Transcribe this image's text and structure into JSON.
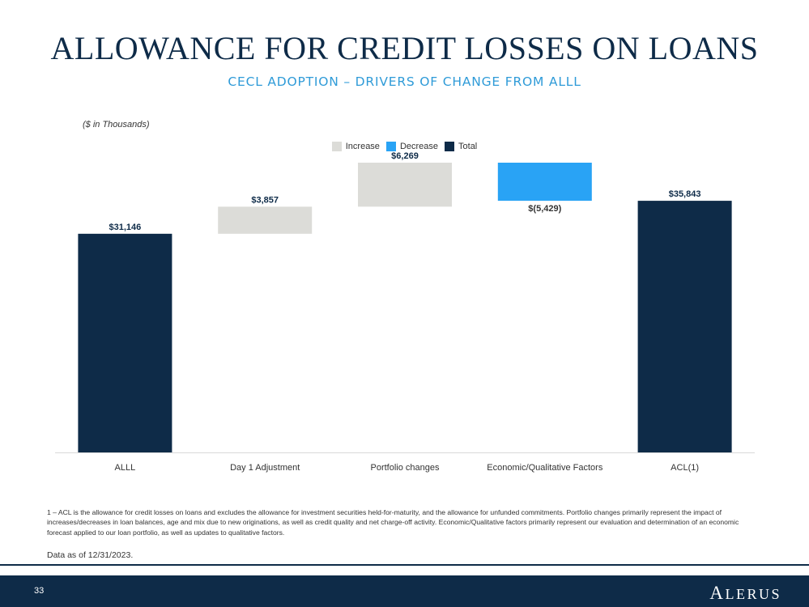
{
  "header": {
    "title": "ALLOWANCE FOR CREDIT LOSSES ON LOANS",
    "subtitle": "CECL ADOPTION – DRIVERS OF CHANGE FROM ALLL"
  },
  "chart_units": "($ in Thousands)",
  "legend": [
    {
      "label": "Increase",
      "color": "#dcdcd8"
    },
    {
      "label": "Decrease",
      "color": "#29a3f5"
    },
    {
      "label": "Total",
      "color": "#0e2b48"
    }
  ],
  "chart_data": {
    "type": "bar",
    "subtype": "waterfall",
    "categories": [
      "ALLL",
      "Day 1 Adjustment",
      "Portfolio changes",
      "Economic/Qualitative Factors",
      "ACL(1)"
    ],
    "values": [
      31146,
      3857,
      6269,
      -5429,
      35843
    ],
    "kinds": [
      "total",
      "increase",
      "increase",
      "decrease",
      "total"
    ],
    "data_labels": [
      "$31,146",
      "$3,857",
      "$6,269",
      "$(5,429)",
      "$35,843"
    ],
    "ylim": [
      0,
      41272
    ],
    "grid": false,
    "legend_position": "top"
  },
  "footnote": "1 – ACL is the allowance for credit losses on loans and excludes the allowance for investment securities held-for-maturity, and the allowance for unfunded commitments. Portfolio changes primarily represent the impact of increases/decreases in loan balances, age and mix due to new originations, as well as credit quality and net charge-off activity. Economic/Qualitative factors primarily represent our evaluation and determination of an economic forecast applied to our loan portfolio, as well as updates to qualitative factors.",
  "data_as_of": "Data as of 12/31/2023.",
  "footer": {
    "page_number": "33",
    "logo_first": "A",
    "logo_rest": "LERUS"
  }
}
